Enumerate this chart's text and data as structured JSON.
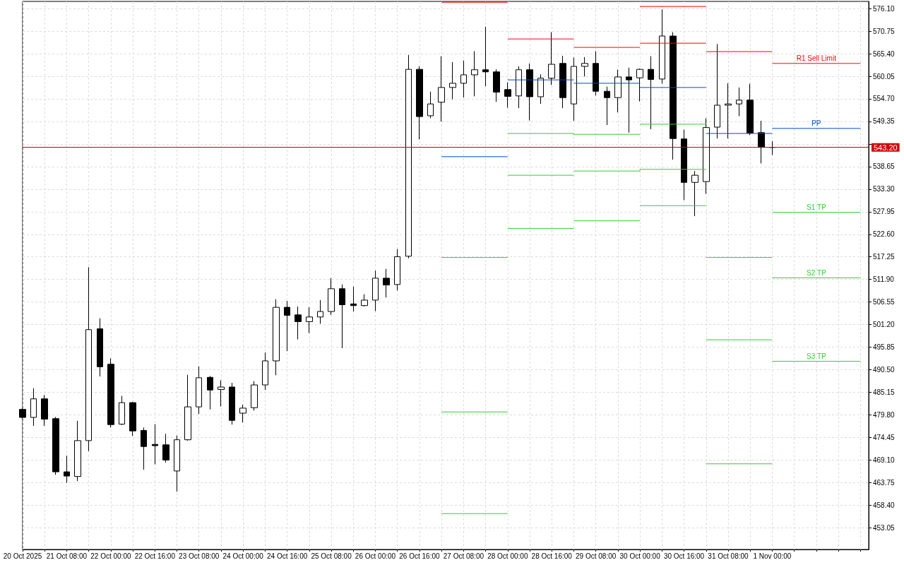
{
  "chart_data": {
    "type": "candlestick",
    "color": "#000000",
    "x": [
      "2025-10-20T16:00",
      "2025-10-20T20:00",
      "2025-10-21T00:00",
      "2025-10-21T04:00",
      "2025-10-21T08:00",
      "2025-10-21T12:00",
      "2025-10-21T16:00",
      "2025-10-21T20:00",
      "2025-10-22T00:00",
      "2025-10-22T04:00",
      "2025-10-22T08:00",
      "2025-10-22T12:00",
      "2025-10-22T16:00",
      "2025-10-22T20:00",
      "2025-10-23T00:00",
      "2025-10-23T04:00",
      "2025-10-23T08:00",
      "2025-10-23T12:00",
      "2025-10-23T16:00",
      "2025-10-23T20:00",
      "2025-10-24T00:00",
      "2025-10-24T04:00",
      "2025-10-24T08:00",
      "2025-10-24T12:00",
      "2025-10-24T16:00",
      "2025-10-24T20:00",
      "2025-10-25T00:00",
      "2025-10-25T04:00",
      "2025-10-25T08:00",
      "2025-10-25T12:00",
      "2025-10-25T16:00",
      "2025-10-25T20:00",
      "2025-10-26T00:00",
      "2025-10-26T04:00",
      "2025-10-26T08:00",
      "2025-10-26T12:00",
      "2025-10-26T16:00",
      "2025-10-26T20:00",
      "2025-10-27T00:00",
      "2025-10-27T04:00",
      "2025-10-27T08:00",
      "2025-10-27T12:00",
      "2025-10-27T16:00",
      "2025-10-27T20:00",
      "2025-10-28T00:00",
      "2025-10-28T04:00",
      "2025-10-28T08:00",
      "2025-10-28T12:00",
      "2025-10-28T16:00",
      "2025-10-28T20:00",
      "2025-10-29T00:00",
      "2025-10-29T04:00",
      "2025-10-29T08:00",
      "2025-10-29T12:00",
      "2025-10-29T16:00",
      "2025-10-29T20:00",
      "2025-10-30T00:00",
      "2025-10-30T04:00",
      "2025-10-30T08:00",
      "2025-10-30T12:00",
      "2025-10-30T16:00",
      "2025-10-30T20:00",
      "2025-10-31T00:00",
      "2025-10-31T04:00",
      "2025-10-31T08:00",
      "2025-10-31T12:00",
      "2025-10-31T16:00",
      "2025-10-31T20:00",
      "2025-11-01T00:00"
    ],
    "ohlc": [
      [
        481.1,
        481.4,
        478.9,
        479.2
      ],
      [
        479.2,
        486.1,
        477.2,
        483.6
      ],
      [
        483.6,
        484.5,
        477.2,
        478.8
      ],
      [
        478.9,
        479.3,
        465.6,
        466.3
      ],
      [
        466.3,
        470.1,
        463.7,
        465.3
      ],
      [
        465.2,
        478.4,
        464.1,
        473.7
      ],
      [
        473.7,
        514.8,
        471.2,
        500.0
      ],
      [
        500.2,
        502.7,
        488.9,
        491.2
      ],
      [
        491.8,
        493.2,
        476.8,
        477.5
      ],
      [
        477.6,
        484.3,
        477.4,
        482.7
      ],
      [
        482.7,
        482.9,
        474.8,
        476.0
      ],
      [
        476.1,
        476.8,
        466.8,
        472.3
      ],
      [
        472.8,
        477.6,
        468.1,
        472.5
      ],
      [
        472.7,
        475.3,
        468.5,
        469.1
      ],
      [
        466.5,
        474.9,
        461.6,
        473.9
      ],
      [
        473.9,
        489.3,
        473.7,
        481.7
      ],
      [
        481.7,
        491.3,
        480.0,
        488.6
      ],
      [
        488.7,
        489.0,
        481.1,
        485.7
      ],
      [
        485.8,
        488.0,
        481.8,
        486.4
      ],
      [
        486.4,
        487.4,
        477.5,
        478.5
      ],
      [
        480.2,
        482.2,
        478.0,
        481.4
      ],
      [
        481.5,
        487.8,
        480.8,
        486.9
      ],
      [
        486.9,
        494.6,
        485.7,
        492.6
      ],
      [
        492.6,
        507.2,
        489.2,
        505.3
      ],
      [
        505.3,
        506.8,
        494.9,
        503.4
      ],
      [
        503.5,
        505.5,
        497.7,
        501.9
      ],
      [
        501.9,
        505.3,
        499.2,
        503.0
      ],
      [
        503.0,
        507.0,
        501.4,
        504.3
      ],
      [
        504.3,
        512.2,
        503.5,
        509.7
      ],
      [
        509.7,
        510.7,
        495.6,
        505.9
      ],
      [
        506.1,
        510.2,
        504.3,
        505.7
      ],
      [
        505.7,
        508.4,
        505.5,
        507.0
      ],
      [
        507.0,
        514.0,
        504.4,
        512.2
      ],
      [
        512.2,
        514.4,
        507.6,
        510.6
      ],
      [
        510.7,
        519.1,
        509.3,
        517.3
      ],
      [
        517.4,
        565.1,
        516.9,
        561.7
      ],
      [
        561.7,
        562.4,
        545.1,
        550.5
      ],
      [
        550.7,
        556.4,
        550.1,
        553.5
      ],
      [
        553.9,
        564.8,
        549.3,
        557.4
      ],
      [
        557.4,
        563.4,
        554.6,
        558.4
      ],
      [
        558.4,
        563.8,
        555.0,
        560.4
      ],
      [
        560.4,
        566.0,
        555.3,
        561.6
      ],
      [
        561.6,
        571.8,
        557.7,
        561.1
      ],
      [
        561.1,
        561.7,
        554.0,
        556.3
      ],
      [
        556.9,
        558.6,
        552.6,
        555.3
      ],
      [
        555.4,
        562.4,
        552.5,
        561.6
      ],
      [
        561.6,
        563.1,
        549.6,
        555.2
      ],
      [
        555.2,
        560.5,
        553.5,
        559.6
      ],
      [
        559.6,
        570.5,
        558.0,
        562.9
      ],
      [
        563.1,
        564.9,
        552.5,
        555.0
      ],
      [
        553.5,
        564.5,
        549.5,
        562.4
      ],
      [
        562.4,
        564.6,
        560.0,
        563.1
      ],
      [
        563.1,
        566.0,
        555.5,
        556.5
      ],
      [
        556.5,
        557.6,
        548.5,
        555.0
      ],
      [
        555.0,
        561.6,
        551.5,
        559.9
      ],
      [
        559.9,
        562.1,
        546.7,
        559.2
      ],
      [
        559.7,
        561.9,
        554.1,
        561.7
      ],
      [
        561.7,
        564.8,
        547.5,
        559.3
      ],
      [
        559.4,
        575.9,
        558.3,
        569.6
      ],
      [
        569.6,
        570.5,
        540.3,
        545.3
      ],
      [
        545.2,
        547.4,
        530.7,
        534.9
      ],
      [
        534.9,
        537.6,
        526.9,
        536.6
      ],
      [
        535.1,
        550.1,
        532.2,
        547.9
      ],
      [
        548.0,
        567.7,
        545.3,
        553.2
      ],
      [
        553.2,
        558.4,
        545.3,
        553.5
      ],
      [
        553.5,
        557.4,
        550.6,
        554.4
      ],
      [
        554.4,
        558.3,
        546.1,
        546.6
      ],
      [
        546.7,
        549.5,
        539.4,
        543.2
      ],
      [
        543.2,
        544.7,
        541.4,
        543.2
      ]
    ],
    "series": [
      {
        "type": "line",
        "color": "#ff0000",
        "x": [
          "2025-10-27T00:00",
          "2025-10-28T00:00"
        ],
        "values": [
          577.6,
          577.6
        ]
      },
      {
        "type": "line",
        "color": "#0047d4",
        "x": [
          "2025-10-27T00:00",
          "2025-10-28T00:00"
        ],
        "values": [
          541.0,
          541.0
        ]
      },
      {
        "type": "line",
        "color": "#32cd32",
        "x": [
          "2025-10-27T00:00",
          "2025-10-28T00:00"
        ],
        "values": [
          517.1,
          517.1
        ]
      },
      {
        "type": "line",
        "color": "#32cd32",
        "x": [
          "2025-10-27T00:00",
          "2025-10-28T00:00"
        ],
        "values": [
          480.5,
          480.5
        ]
      },
      {
        "type": "line",
        "color": "#32cd32",
        "x": [
          "2025-10-27T00:00",
          "2025-10-28T00:00"
        ],
        "values": [
          456.4,
          456.4
        ]
      },
      {
        "type": "line",
        "color": "#ff0000",
        "x": [
          "2025-10-28T00:00",
          "2025-10-29T00:00"
        ],
        "values": [
          568.9,
          568.9
        ]
      },
      {
        "type": "line",
        "color": "#0047d4",
        "x": [
          "2025-10-28T00:00",
          "2025-10-29T00:00"
        ],
        "values": [
          559.2,
          559.2
        ]
      },
      {
        "type": "line",
        "color": "#32cd32",
        "x": [
          "2025-10-28T00:00",
          "2025-10-29T00:00",
          "2025-10-29T00:00",
          "2025-10-30T00:00"
        ],
        "values": [
          546.5,
          546.5,
          546.3,
          546.3
        ]
      },
      {
        "type": "line",
        "color": "#32cd32",
        "x": [
          "2025-10-28T00:00",
          "2025-10-29T00:00"
        ],
        "values": [
          536.6,
          536.6
        ]
      },
      {
        "type": "line",
        "color": "#32cd32",
        "x": [
          "2025-10-28T00:00",
          "2025-10-29T00:00"
        ],
        "values": [
          524.0,
          524.0
        ]
      },
      {
        "type": "line",
        "color": "#ff0000",
        "x": [
          "2025-10-29T00:00",
          "2025-10-30T00:00"
        ],
        "values": [
          566.9,
          566.9
        ]
      },
      {
        "type": "line",
        "color": "#0047d4",
        "x": [
          "2025-10-29T00:00",
          "2025-10-30T00:00"
        ],
        "values": [
          558.4,
          558.4
        ]
      },
      {
        "type": "line",
        "color": "#32cd32",
        "x": [
          "2025-10-29T00:00",
          "2025-10-30T00:00",
          "2025-10-30T00:00",
          "2025-10-31T00:00"
        ],
        "values": [
          537.6,
          537.6,
          538.0,
          538.0
        ]
      },
      {
        "type": "line",
        "color": "#32cd32",
        "x": [
          "2025-10-29T00:00",
          "2025-10-30T00:00"
        ],
        "values": [
          525.8,
          525.8
        ]
      },
      {
        "type": "line",
        "color": "#ff0000",
        "x": [
          "2025-10-30T00:00",
          "2025-10-31T00:00"
        ],
        "values": [
          576.6,
          576.6
        ]
      },
      {
        "type": "line",
        "color": "#ff0000",
        "x": [
          "2025-10-30T00:00",
          "2025-10-31T00:00"
        ],
        "values": [
          567.9,
          567.9
        ]
      },
      {
        "type": "line",
        "color": "#0047d4",
        "x": [
          "2025-10-30T00:00",
          "2025-10-31T00:00"
        ],
        "values": [
          557.4,
          557.4
        ]
      },
      {
        "type": "line",
        "color": "#32cd32",
        "x": [
          "2025-10-30T00:00",
          "2025-10-31T00:00"
        ],
        "values": [
          548.7,
          548.7
        ]
      },
      {
        "type": "line",
        "color": "#32cd32",
        "x": [
          "2025-10-30T00:00",
          "2025-10-31T00:00"
        ],
        "values": [
          529.4,
          529.4
        ]
      },
      {
        "type": "line",
        "color": "#ff0000",
        "x": [
          "2025-10-31T00:00",
          "2025-11-01T00:00"
        ],
        "values": [
          565.9,
          565.9
        ]
      },
      {
        "type": "line",
        "color": "#0047d4",
        "x": [
          "2025-10-31T00:00",
          "2025-11-01T00:00"
        ],
        "values": [
          546.5,
          546.5
        ]
      },
      {
        "type": "line",
        "color": "#32cd32",
        "x": [
          "2025-10-31T00:00",
          "2025-11-01T00:00"
        ],
        "values": [
          517.1,
          517.1
        ]
      },
      {
        "type": "line",
        "color": "#32cd32",
        "x": [
          "2025-10-31T00:00",
          "2025-11-01T00:00"
        ],
        "values": [
          497.6,
          497.6
        ]
      },
      {
        "type": "line",
        "color": "#32cd32",
        "x": [
          "2025-10-31T00:00",
          "2025-11-01T00:00"
        ],
        "values": [
          468.2,
          468.2
        ]
      },
      {
        "type": "line",
        "name": "R1 Sell Limit",
        "color": "#ff0000",
        "x": [
          "2025-11-01T00:00",
          "2025-11-02T08:00"
        ],
        "values": [
          563.1,
          563.1
        ]
      },
      {
        "type": "line",
        "name": "PP",
        "color": "#0047d4",
        "x": [
          "2025-11-01T00:00",
          "2025-11-02T08:00"
        ],
        "values": [
          547.7,
          547.7
        ]
      },
      {
        "type": "line",
        "name": "S1 TP",
        "color": "#32cd32",
        "x": [
          "2025-11-01T00:00",
          "2025-11-02T08:00"
        ],
        "values": [
          527.8,
          527.8
        ]
      },
      {
        "type": "line",
        "name": "S2 TP",
        "color": "#32cd32",
        "x": [
          "2025-11-01T00:00",
          "2025-11-02T08:00"
        ],
        "values": [
          512.3,
          512.3
        ]
      },
      {
        "type": "line",
        "name": "S3 TP",
        "color": "#32cd32",
        "x": [
          "2025-11-01T00:00",
          "2025-11-02T08:00"
        ],
        "values": [
          492.5,
          492.5
        ]
      }
    ],
    "xlim": [
      "2025-10-20T16:00",
      "2025-11-02T11:00"
    ],
    "ylim": [
      447.9,
      577.8
    ],
    "xticks": [
      {
        "value": "2025-10-20T16:00",
        "label": "20 Oct 2025"
      },
      {
        "value": "2025-10-21T00:00",
        "label": null
      },
      {
        "value": "2025-10-21T08:00",
        "label": "21 Oct 08:00"
      },
      {
        "value": "2025-10-21T16:00",
        "label": null
      },
      {
        "value": "2025-10-22T00:00",
        "label": "22 Oct 00:00"
      },
      {
        "value": "2025-10-22T08:00",
        "label": null
      },
      {
        "value": "2025-10-22T16:00",
        "label": "22 Oct 16:00"
      },
      {
        "value": "2025-10-23T00:00",
        "label": null
      },
      {
        "value": "2025-10-23T08:00",
        "label": "23 Oct 08:00"
      },
      {
        "value": "2025-10-23T16:00",
        "label": null
      },
      {
        "value": "2025-10-24T00:00",
        "label": "24 Oct 00:00"
      },
      {
        "value": "2025-10-24T08:00",
        "label": null
      },
      {
        "value": "2025-10-24T16:00",
        "label": "24 Oct 16:00"
      },
      {
        "value": "2025-10-25T00:00",
        "label": null
      },
      {
        "value": "2025-10-25T08:00",
        "label": "25 Oct 08:00"
      },
      {
        "value": "2025-10-25T16:00",
        "label": null
      },
      {
        "value": "2025-10-26T00:00",
        "label": "26 Oct 00:00"
      },
      {
        "value": "2025-10-26T08:00",
        "label": null
      },
      {
        "value": "2025-10-26T16:00",
        "label": "26 Oct 16:00"
      },
      {
        "value": "2025-10-27T00:00",
        "label": null
      },
      {
        "value": "2025-10-27T08:00",
        "label": "27 Oct 08:00"
      },
      {
        "value": "2025-10-27T16:00",
        "label": null
      },
      {
        "value": "2025-10-28T00:00",
        "label": "28 Oct 00:00"
      },
      {
        "value": "2025-10-28T08:00",
        "label": null
      },
      {
        "value": "2025-10-28T16:00",
        "label": "28 Oct 16:00"
      },
      {
        "value": "2025-10-29T00:00",
        "label": null
      },
      {
        "value": "2025-10-29T08:00",
        "label": "29 Oct 08:00"
      },
      {
        "value": "2025-10-29T16:00",
        "label": null
      },
      {
        "value": "2025-10-30T00:00",
        "label": "30 Oct 00:00"
      },
      {
        "value": "2025-10-30T08:00",
        "label": null
      },
      {
        "value": "2025-10-30T16:00",
        "label": "30 Oct 16:00"
      },
      {
        "value": "2025-10-31T00:00",
        "label": null
      },
      {
        "value": "2025-10-31T08:00",
        "label": "31 Oct 08:00"
      },
      {
        "value": "2025-10-31T16:00",
        "label": null
      },
      {
        "value": "2025-11-01T00:00",
        "label": "1 Nov 00:00"
      },
      {
        "value": "2025-11-01T08:00",
        "label": null
      },
      {
        "value": "2025-11-01T16:00",
        "label": null
      },
      {
        "value": "2025-11-02T00:00",
        "label": null
      },
      {
        "value": "2025-11-02T08:00",
        "label": null
      }
    ],
    "yticks": [
      {
        "value": 576.1,
        "label": "576.10"
      },
      570.75,
      {
        "value": 565.4,
        "label": "565.40"
      },
      560.05,
      {
        "value": 554.7,
        "label": "554.70"
      },
      549.35,
      {
        "value": 544,
        "label": null
      },
      538.65,
      {
        "value": 533.3,
        "label": "533.30"
      },
      527.95,
      {
        "value": 522.6,
        "label": "522.60"
      },
      517.25,
      {
        "value": 511.9,
        "label": "511.90"
      },
      506.55,
      {
        "value": 501.2,
        "label": "501.20"
      },
      495.85,
      {
        "value": 490.5,
        "label": "490.50"
      },
      485.15,
      {
        "value": 479.8,
        "label": "479.80"
      },
      474.45,
      {
        "value": 469.1,
        "label": "469.10"
      },
      463.75,
      {
        "value": 458.4,
        "label": "458.40"
      },
      453.05
    ],
    "ref_lines": [
      {
        "axis": "y",
        "value": 543.2,
        "label": "543.20",
        "color": "#d00000"
      }
    ],
    "grid": true,
    "marker": "none"
  }
}
